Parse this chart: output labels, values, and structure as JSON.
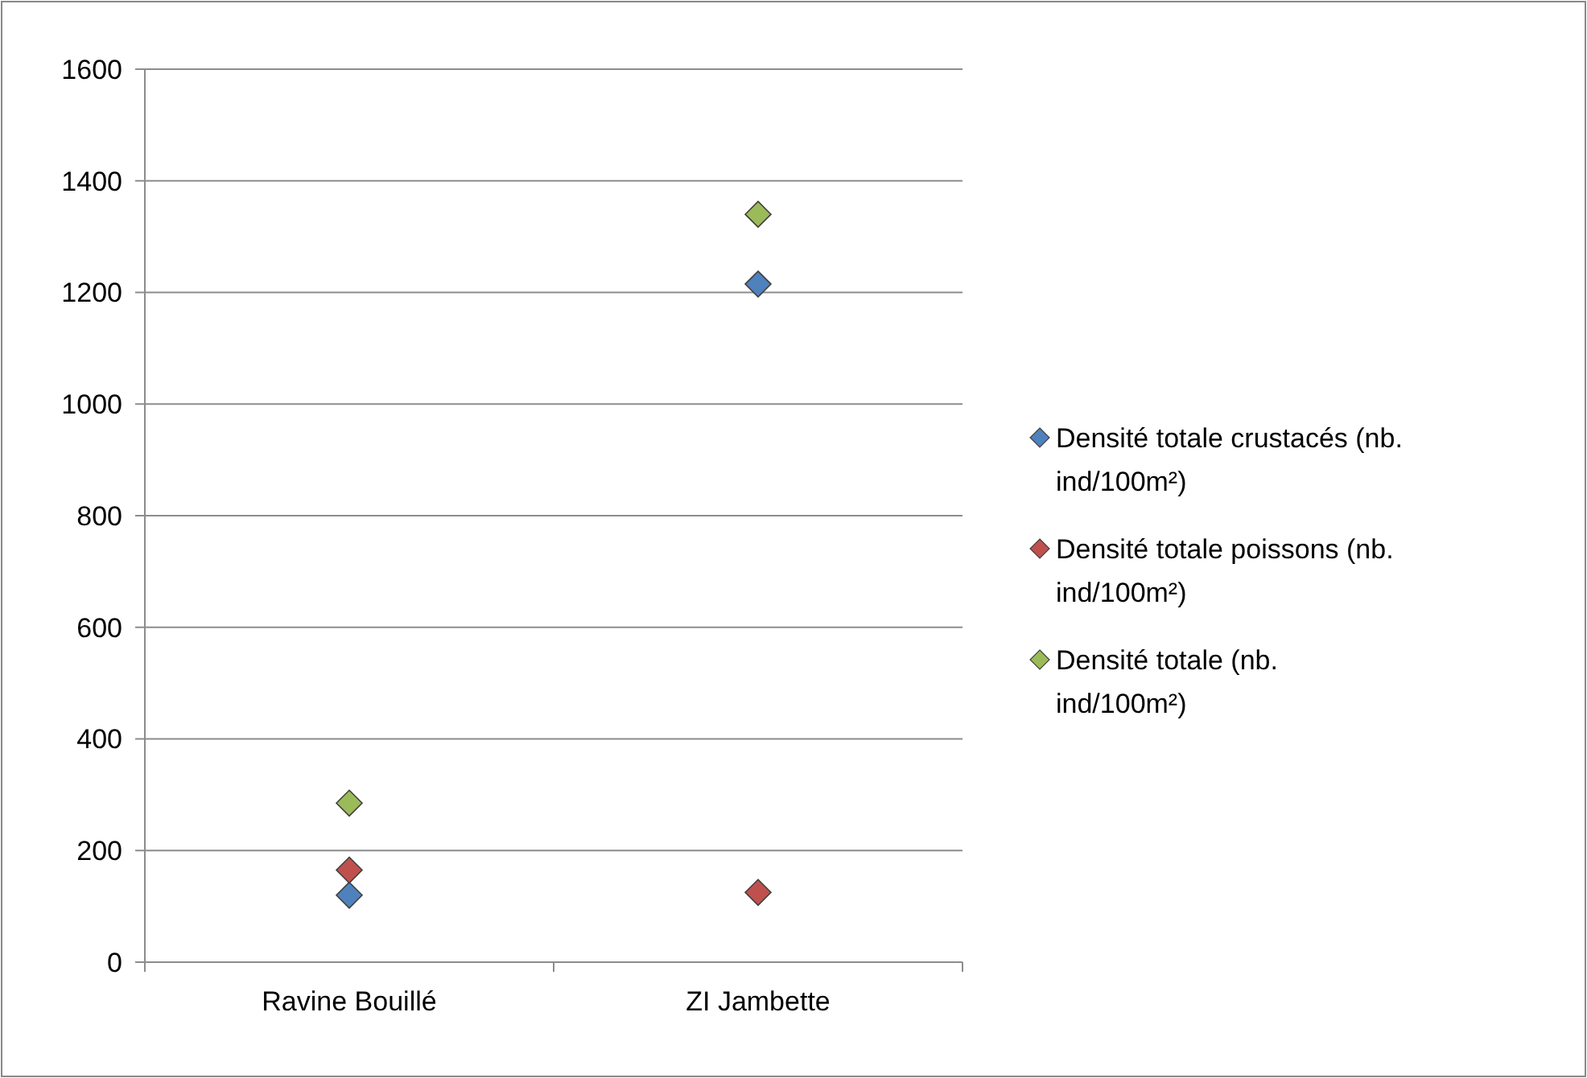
{
  "chart_data": {
    "type": "scatter",
    "categories": [
      "Ravine Bouillé",
      "ZI Jambette"
    ],
    "series": [
      {
        "name": "Densité totale crustacés (nb. ind/100m²)",
        "color": "#4f81bd",
        "values": [
          120,
          1215
        ]
      },
      {
        "name": "Densité totale poissons (nb. ind/100m²)",
        "color": "#c0504d",
        "values": [
          165,
          125
        ]
      },
      {
        "name": "Densité totale (nb. ind/100m²)",
        "color": "#9bbb59",
        "values": [
          285,
          1340
        ]
      }
    ],
    "ylim": [
      0,
      1600
    ],
    "yticks": [
      0,
      200,
      400,
      600,
      800,
      1000,
      1200,
      1400,
      1600
    ],
    "grid": "y",
    "legend": "right",
    "marker": "diamond"
  }
}
